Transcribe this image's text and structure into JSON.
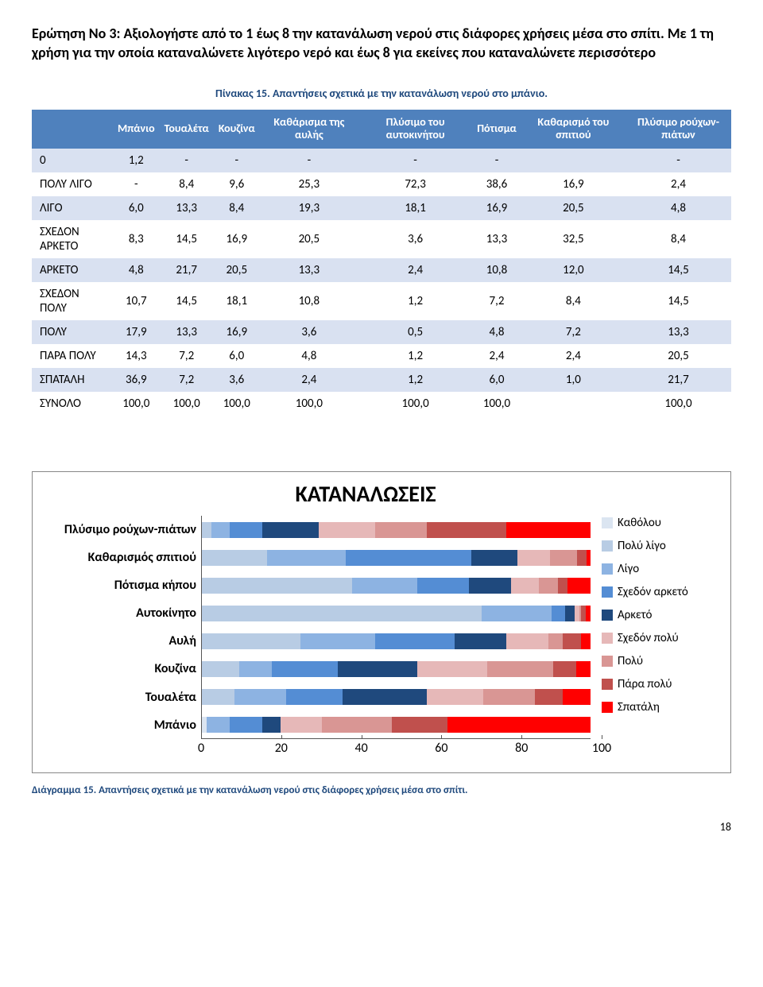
{
  "question": "Ερώτηση Νο 3: Αξιολογήστε από το 1 έως 8 την κατανάλωση νερού στις διάφορες χρήσεις μέσα στο σπίτι. Με 1 τη χρήση για την οποία καταναλώνετε λιγότερο νερό και έως 8 για εκείνες που καταναλώνετε περισσότερο",
  "table_caption": "Πίνακας 15. Απαντήσεις σχετικά με την κατανάλωση νερού στο μπάνιο.",
  "columns": [
    "",
    "Μπάνιο",
    "Τουαλέτα",
    "Κουζίνα",
    "Καθάρισμα της αυλής",
    "Πλύσιμο του αυτοκινήτου",
    "Πότισμα",
    "Καθαρισμό του σπιτιού",
    "Πλύσιμο ρούχων-πιάτων"
  ],
  "rows": [
    {
      "label": "0",
      "cells": [
        "1,2",
        "-",
        "-",
        "-",
        "-",
        "-",
        "",
        "-"
      ]
    },
    {
      "label": "ΠΟΛΥ ΛΙΓΟ",
      "cells": [
        "-",
        "8,4",
        "9,6",
        "25,3",
        "72,3",
        "38,6",
        "16,9",
        "2,4"
      ]
    },
    {
      "label": "ΛΙΓΟ",
      "cells": [
        "6,0",
        "13,3",
        "8,4",
        "19,3",
        "18,1",
        "16,9",
        "20,5",
        "4,8"
      ]
    },
    {
      "label": "ΣΧΕΔΟΝ ΑΡΚΕΤΟ",
      "cells": [
        "8,3",
        "14,5",
        "16,9",
        "20,5",
        "3,6",
        "13,3",
        "32,5",
        "8,4"
      ]
    },
    {
      "label": "ΑΡΚΕΤΟ",
      "cells": [
        "4,8",
        "21,7",
        "20,5",
        "13,3",
        "2,4",
        "10,8",
        "12,0",
        "14,5"
      ]
    },
    {
      "label": "ΣΧΕΔΟΝ ΠΟΛΥ",
      "cells": [
        "10,7",
        "14,5",
        "18,1",
        "10,8",
        "1,2",
        "7,2",
        "8,4",
        "14,5"
      ]
    },
    {
      "label": "ΠΟΛΥ",
      "cells": [
        "17,9",
        "13,3",
        "16,9",
        "3,6",
        "0,5",
        "4,8",
        "7,2",
        "13,3"
      ]
    },
    {
      "label": "ΠΑΡΑ ΠΟΛΥ",
      "cells": [
        "14,3",
        "7,2",
        "6,0",
        "4,8",
        "1,2",
        "2,4",
        "2,4",
        "20,5"
      ]
    },
    {
      "label": "ΣΠΑΤΑΛΗ",
      "cells": [
        "36,9",
        "7,2",
        "3,6",
        "2,4",
        "1,2",
        "6,0",
        "1,0",
        "21,7"
      ]
    },
    {
      "label": "ΣΥΝΟΛΟ",
      "cells": [
        "100,0",
        "100,0",
        "100,0",
        "100,0",
        "100,0",
        "100,0",
        "",
        "100,0"
      ]
    }
  ],
  "chart": {
    "title": "ΚΑΤΑΝΑΛΩΣΕΙΣ",
    "categories": [
      "Πλύσιμο ρούχων-πιάτων",
      "Καθαρισμός σπιτιού",
      "Πότισμα κήπου",
      "Αυτοκίνητο",
      "Αυλή",
      "Κουζίνα",
      "Τουαλέτα",
      "Μπάνιο"
    ],
    "legend": [
      "Καθόλου",
      "Πολύ λίγο",
      "Λίγο",
      "Σχεδόν αρκετό",
      "Αρκετό",
      "Σχεδόν πολύ",
      "Πολύ",
      "Πάρα πολύ",
      "Σπατάλη"
    ],
    "colors": [
      "#dbe5f1",
      "#b8cce4",
      "#8db3e2",
      "#548dd4",
      "#1f497d",
      "#e6b8b8",
      "#d99694",
      "#c0504d",
      "#ff0000"
    ],
    "series": [
      [
        0,
        2.4,
        4.8,
        8.4,
        14.5,
        14.5,
        13.3,
        20.5,
        21.7
      ],
      [
        0,
        16.9,
        20.5,
        32.5,
        12.0,
        8.4,
        7.2,
        2.4,
        1.0
      ],
      [
        0,
        38.6,
        16.9,
        13.3,
        10.8,
        7.2,
        4.8,
        2.4,
        6.0
      ],
      [
        0,
        72.3,
        18.1,
        3.6,
        2.4,
        1.2,
        0.5,
        1.2,
        1.2
      ],
      [
        0,
        25.3,
        19.3,
        20.5,
        13.3,
        10.8,
        3.6,
        4.8,
        2.4
      ],
      [
        0,
        9.6,
        8.4,
        16.9,
        20.5,
        18.1,
        16.9,
        6.0,
        3.6
      ],
      [
        0,
        8.4,
        13.3,
        14.5,
        21.7,
        14.5,
        13.3,
        7.2,
        7.2
      ],
      [
        1.2,
        0,
        6.0,
        8.3,
        4.8,
        10.7,
        17.9,
        14.3,
        36.9
      ]
    ],
    "xticks": [
      0,
      20,
      40,
      60,
      80,
      100
    ]
  },
  "chart_caption": "Διάγραμμα 15. Απαντήσεις σχετικά με την κατανάλωση νερού στις διάφορες χρήσεις μέσα στο σπίτι.",
  "page_number": "18"
}
